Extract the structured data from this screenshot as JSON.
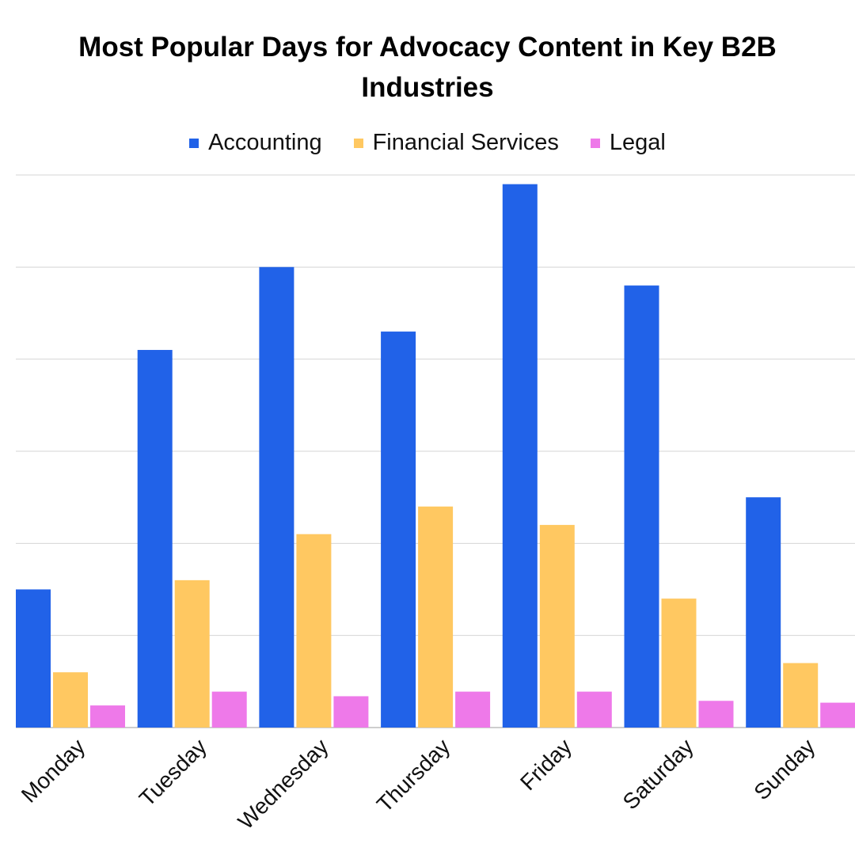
{
  "chart_data": {
    "type": "bar",
    "title": "Most Popular Days for Advocacy Content in Key B2B Industries",
    "xlabel": "",
    "ylabel": "",
    "y_tick_labels_shown": false,
    "ylim": [
      0,
      6
    ],
    "grid": true,
    "legend_placement": "top",
    "categories": [
      "Monday",
      "Tuesday",
      "Wednesday",
      "Thursday",
      "Friday",
      "Saturday",
      "Sunday"
    ],
    "series": [
      {
        "name": "Accounting",
        "color": "#2162e8",
        "values": [
          1.5,
          4.1,
          5.0,
          4.3,
          5.9,
          4.8,
          2.5
        ]
      },
      {
        "name": "Financial Services",
        "color": "#ffc861",
        "values": [
          0.6,
          1.6,
          2.1,
          2.4,
          2.2,
          1.4,
          0.7
        ]
      },
      {
        "name": "Legal",
        "color": "#ee79e9",
        "values": [
          0.24,
          0.39,
          0.34,
          0.39,
          0.39,
          0.29,
          0.27
        ]
      }
    ]
  }
}
